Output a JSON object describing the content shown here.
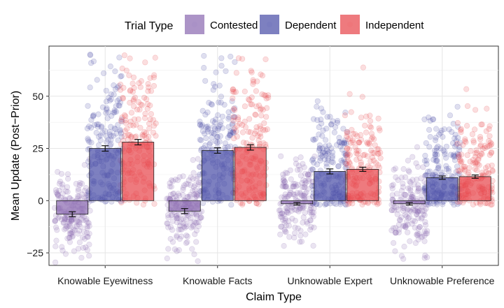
{
  "chart_data": {
    "type": "bar",
    "title": "",
    "xlabel": "Claim Type",
    "ylabel": "Mean Update (Post−Prior)",
    "ylim": [
      -31,
      74
    ],
    "yticks": [
      -25,
      0,
      25,
      50
    ],
    "ytick_labels": [
      "−25",
      "0",
      "25",
      "50"
    ],
    "grid": true,
    "legend_position": "top",
    "legend_title": "Trial Type",
    "categories": [
      "Knowable Eyewitness",
      "Knowable Facts",
      "Unknowable Expert",
      "Unknowable Preference"
    ],
    "series": [
      {
        "name": "Contested",
        "color": "#8c6bb1",
        "values": [
          -6.5,
          -5,
          -1.5,
          -1.5
        ],
        "error": [
          1.2,
          1.2,
          0.6,
          0.6
        ]
      },
      {
        "name": "Dependent",
        "color": "#4b4fa8",
        "values": [
          25,
          24,
          14,
          11
        ],
        "error": [
          1.3,
          1.3,
          1.2,
          0.8
        ]
      },
      {
        "name": "Independent",
        "color": "#e8474c",
        "values": [
          28,
          25.5,
          15,
          11.5
        ],
        "error": [
          1.3,
          1.3,
          1.0,
          0.8
        ]
      }
    ]
  }
}
